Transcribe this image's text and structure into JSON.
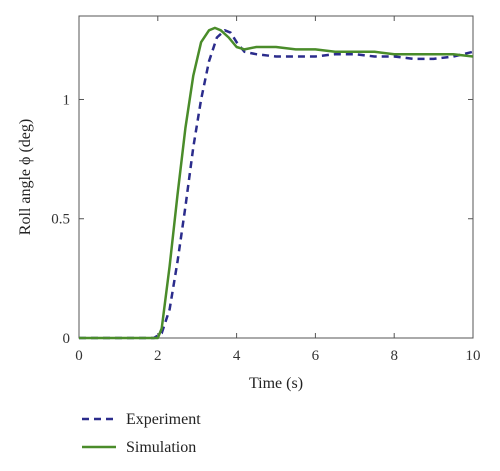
{
  "chart_data": {
    "type": "line",
    "xlabel": "Time (s)",
    "ylabel": "Roll angle ϕ (deg)",
    "xlim": [
      0,
      10
    ],
    "ylim": [
      0,
      1.35
    ],
    "xticks": [
      0,
      2,
      4,
      6,
      8,
      10
    ],
    "yticks": [
      0,
      0.5,
      1
    ],
    "ytick_labels": [
      "0",
      "0.5",
      "1"
    ],
    "grid": false,
    "legend_position": "bottom-left, below plot",
    "series": [
      {
        "name": "Experiment",
        "style": "dashed",
        "color": "#2b2c8c",
        "x": [
          0,
          1.9,
          2.1,
          2.3,
          2.5,
          2.7,
          2.9,
          3.1,
          3.3,
          3.5,
          3.7,
          3.85,
          4.0,
          4.2,
          4.5,
          5.0,
          5.5,
          6.0,
          6.5,
          7.0,
          7.5,
          8.0,
          8.5,
          9.0,
          9.5,
          10.0
        ],
        "y": [
          0,
          0,
          0.02,
          0.12,
          0.32,
          0.55,
          0.8,
          1.0,
          1.16,
          1.26,
          1.29,
          1.28,
          1.24,
          1.2,
          1.19,
          1.18,
          1.18,
          1.18,
          1.19,
          1.19,
          1.18,
          1.18,
          1.17,
          1.17,
          1.18,
          1.2
        ]
      },
      {
        "name": "Simulation",
        "style": "solid",
        "color": "#4a8c2a",
        "x": [
          0,
          2.0,
          2.1,
          2.3,
          2.5,
          2.7,
          2.9,
          3.1,
          3.3,
          3.45,
          3.6,
          3.8,
          4.0,
          4.2,
          4.5,
          5.0,
          5.5,
          6.0,
          6.5,
          7.0,
          7.5,
          8.0,
          8.5,
          9.0,
          9.5,
          10.0
        ],
        "y": [
          0,
          0,
          0.04,
          0.3,
          0.6,
          0.88,
          1.1,
          1.24,
          1.29,
          1.3,
          1.29,
          1.26,
          1.22,
          1.21,
          1.22,
          1.22,
          1.21,
          1.21,
          1.2,
          1.2,
          1.2,
          1.19,
          1.19,
          1.19,
          1.19,
          1.18
        ]
      }
    ]
  },
  "legend": {
    "items": [
      {
        "label": "Experiment",
        "style": "dashed",
        "color": "#2b2c8c"
      },
      {
        "label": "Simulation",
        "style": "solid",
        "color": "#4a8c2a"
      }
    ]
  }
}
